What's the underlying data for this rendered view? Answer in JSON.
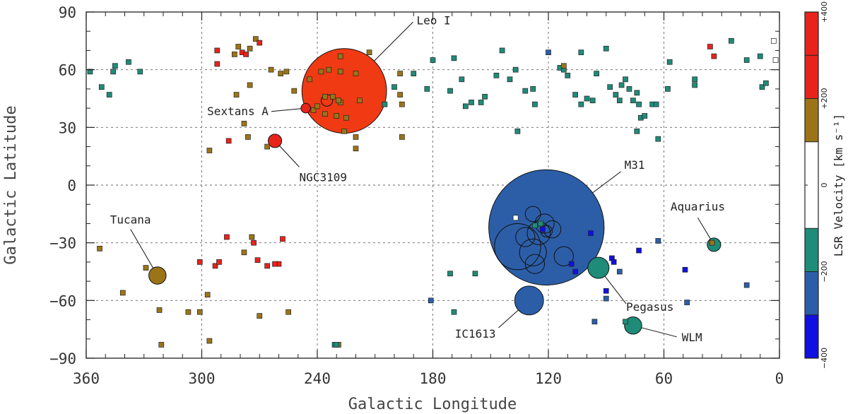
{
  "chart_data": {
    "type": "scatter",
    "xlabel": "Galactic Longitude",
    "ylabel": "Galactic Latitude",
    "xlim": [
      360,
      0
    ],
    "ylim": [
      -90,
      90
    ],
    "x_ticks": [
      360,
      300,
      240,
      180,
      120,
      60,
      0
    ],
    "y_ticks": [
      90,
      60,
      30,
      0,
      -30,
      -60,
      -90
    ],
    "grid": true,
    "colorbar": {
      "title": "LSR Velocity [km s⁻¹]",
      "tick_labels": [
        "+400",
        "+200",
        "0",
        "−200",
        "−400"
      ],
      "tick_values": [
        400,
        200,
        0,
        -200,
        -400
      ],
      "bands": [
        {
          "from": 300,
          "to": 400,
          "color": "#e8231c"
        },
        {
          "from": 200,
          "to": 300,
          "color": "#e8231c"
        },
        {
          "from": 100,
          "to": 200,
          "color": "#9c7418"
        },
        {
          "from": -100,
          "to": 100,
          "color": "#ffffff"
        },
        {
          "from": -200,
          "to": -100,
          "color": "#1e8c78"
        },
        {
          "from": -300,
          "to": -200,
          "color": "#2c5ea8"
        },
        {
          "from": -400,
          "to": -300,
          "color": "#1010e0"
        }
      ]
    },
    "galaxies": [
      {
        "name": "Leo I",
        "l": 226,
        "b": 49,
        "r_deg": 22,
        "color": "#f03a14",
        "label": "Leo I"
      },
      {
        "name": "Sextans A",
        "l": 246,
        "b": 40,
        "r_deg": 2.5,
        "color": "#e8231c",
        "label": "Sextans A"
      },
      {
        "name": "NGC3109",
        "l": 262,
        "b": 23,
        "r_deg": 3.5,
        "color": "#e8231c",
        "label": "NGC3109"
      },
      {
        "name": "M31",
        "l": 121,
        "b": -22,
        "r_deg": 30,
        "color": "#2c5ea8",
        "label": "M31"
      },
      {
        "name": "Aquarius",
        "l": 34,
        "b": -31,
        "r_deg": 3.5,
        "color": "#1e8c78",
        "label": "Aquarius"
      },
      {
        "name": "Tucana",
        "l": 323,
        "b": -47,
        "r_deg": 4.5,
        "color": "#9c7418",
        "label": "Tucana"
      },
      {
        "name": "Pegasus",
        "l": 94,
        "b": -43,
        "r_deg": 5.5,
        "color": "#1e8c78",
        "label": "Pegasus"
      },
      {
        "name": "IC1613",
        "l": 130,
        "b": -60,
        "r_deg": 7.5,
        "color": "#2c5ea8",
        "label": "IC1613"
      },
      {
        "name": "WLM",
        "l": 76,
        "b": -73,
        "r_deg": 4.5,
        "color": "#1e8c78",
        "label": "WLM"
      }
    ],
    "m31_satellites": [
      {
        "l": 128,
        "b": -15,
        "r_deg": 4
      },
      {
        "l": 122,
        "b": -20,
        "r_deg": 5
      },
      {
        "l": 125,
        "b": -25,
        "r_deg": 6
      },
      {
        "l": 118,
        "b": -23,
        "r_deg": 4.5
      },
      {
        "l": 132,
        "b": -27,
        "r_deg": 5
      },
      {
        "l": 136,
        "b": -32,
        "r_deg": 12
      },
      {
        "l": 128,
        "b": -35,
        "r_deg": 7
      },
      {
        "l": 112,
        "b": -37,
        "r_deg": 5
      },
      {
        "l": 127,
        "b": -41,
        "r_deg": 5
      },
      {
        "l": 121,
        "b": -24,
        "r_deg": 3
      }
    ],
    "hvc_points": [
      {
        "l": 358,
        "b": 59,
        "v": -170
      },
      {
        "l": 352,
        "b": 51,
        "v": -170
      },
      {
        "l": 348,
        "b": 47,
        "v": -170
      },
      {
        "l": 346,
        "b": 59,
        "v": -170
      },
      {
        "l": 345,
        "b": 62,
        "v": -170
      },
      {
        "l": 338,
        "b": 64,
        "v": -170
      },
      {
        "l": 332,
        "b": 59,
        "v": -170
      },
      {
        "l": 292,
        "b": 70,
        "v": 320
      },
      {
        "l": 292,
        "b": 63,
        "v": 320
      },
      {
        "l": 281,
        "b": 72,
        "v": 150
      },
      {
        "l": 279,
        "b": 69,
        "v": 320
      },
      {
        "l": 277,
        "b": 68,
        "v": 320
      },
      {
        "l": 275,
        "b": 71,
        "v": 150
      },
      {
        "l": 272,
        "b": 76,
        "v": 150
      },
      {
        "l": 270,
        "b": 74,
        "v": 320
      },
      {
        "l": 283,
        "b": 68,
        "v": 150
      },
      {
        "l": 264,
        "b": 60,
        "v": 150
      },
      {
        "l": 259,
        "b": 58,
        "v": 150
      },
      {
        "l": 256,
        "b": 59,
        "v": 150
      },
      {
        "l": 252,
        "b": 49,
        "v": 150
      },
      {
        "l": 244,
        "b": 55,
        "v": 150
      },
      {
        "l": 238,
        "b": 59,
        "v": 150
      },
      {
        "l": 234,
        "b": 60,
        "v": 150
      },
      {
        "l": 228,
        "b": 59,
        "v": 150
      },
      {
        "l": 228,
        "b": 67,
        "v": 150
      },
      {
        "l": 220,
        "b": 58,
        "v": 150
      },
      {
        "l": 213,
        "b": 69,
        "v": 150
      },
      {
        "l": 282,
        "b": 47,
        "v": 150
      },
      {
        "l": 275,
        "b": 52,
        "v": 150
      },
      {
        "l": 242,
        "b": 39,
        "v": 150
      },
      {
        "l": 236,
        "b": 46,
        "v": 150
      },
      {
        "l": 232,
        "b": 46,
        "v": 150
      },
      {
        "l": 228,
        "b": 43,
        "v": 150
      },
      {
        "l": 236,
        "b": 37,
        "v": 150
      },
      {
        "l": 230,
        "b": 36,
        "v": 150
      },
      {
        "l": 225,
        "b": 35,
        "v": 150
      },
      {
        "l": 218,
        "b": 44,
        "v": 150
      },
      {
        "l": 226,
        "b": 28,
        "v": 150
      },
      {
        "l": 220,
        "b": 25,
        "v": 150
      },
      {
        "l": 220,
        "b": 19,
        "v": 150
      },
      {
        "l": 197,
        "b": 58,
        "v": 150
      },
      {
        "l": 197,
        "b": 47,
        "v": 150
      },
      {
        "l": 196,
        "b": 42,
        "v": 150
      },
      {
        "l": 196,
        "b": 25,
        "v": 150
      },
      {
        "l": 278,
        "b": 32,
        "v": 150
      },
      {
        "l": 276,
        "b": 25,
        "v": 150
      },
      {
        "l": 286,
        "b": 23,
        "v": 320
      },
      {
        "l": 296,
        "b": 18,
        "v": 150
      },
      {
        "l": 266,
        "b": 20,
        "v": 150
      },
      {
        "l": 240,
        "b": 41,
        "v": 150
      },
      {
        "l": 229,
        "b": 44,
        "v": 150
      },
      {
        "l": 205,
        "b": 42,
        "v": -170
      },
      {
        "l": 200,
        "b": 51,
        "v": -170
      },
      {
        "l": 190,
        "b": 58,
        "v": -170
      },
      {
        "l": 183,
        "b": 50,
        "v": -170
      },
      {
        "l": 180,
        "b": 65,
        "v": -170
      },
      {
        "l": 171,
        "b": 49,
        "v": -170
      },
      {
        "l": 169,
        "b": 66,
        "v": -170
      },
      {
        "l": 165,
        "b": 55,
        "v": -170
      },
      {
        "l": 163,
        "b": 41,
        "v": -170
      },
      {
        "l": 160,
        "b": 43,
        "v": -170
      },
      {
        "l": 155,
        "b": 43,
        "v": -170
      },
      {
        "l": 153,
        "b": 46,
        "v": -170
      },
      {
        "l": 147,
        "b": 57,
        "v": -170
      },
      {
        "l": 144,
        "b": 70,
        "v": -170
      },
      {
        "l": 140,
        "b": 55,
        "v": -170
      },
      {
        "l": 137,
        "b": 60,
        "v": -170
      },
      {
        "l": 132,
        "b": 49,
        "v": -170
      },
      {
        "l": 128,
        "b": 50,
        "v": -170
      },
      {
        "l": 127,
        "b": 42,
        "v": -170
      },
      {
        "l": 136,
        "b": 28,
        "v": -170
      },
      {
        "l": 120,
        "b": 69,
        "v": -250
      },
      {
        "l": 114,
        "b": 61,
        "v": -170
      },
      {
        "l": 112,
        "b": 60,
        "v": -170
      },
      {
        "l": 110,
        "b": 57,
        "v": -170
      },
      {
        "l": 106,
        "b": 47,
        "v": -170
      },
      {
        "l": 103,
        "b": 42,
        "v": -170
      },
      {
        "l": 100,
        "b": 45,
        "v": -170
      },
      {
        "l": 97,
        "b": 44,
        "v": -170
      },
      {
        "l": 95,
        "b": 58,
        "v": -170
      },
      {
        "l": 90,
        "b": 71,
        "v": -170
      },
      {
        "l": 88,
        "b": 51,
        "v": -170
      },
      {
        "l": 85,
        "b": 47,
        "v": -170
      },
      {
        "l": 83,
        "b": 44,
        "v": -170
      },
      {
        "l": 82,
        "b": 52,
        "v": -170
      },
      {
        "l": 80,
        "b": 55,
        "v": -170
      },
      {
        "l": 78,
        "b": 50,
        "v": -170
      },
      {
        "l": 76,
        "b": 44,
        "v": -170
      },
      {
        "l": 74,
        "b": 48,
        "v": -170
      },
      {
        "l": 73,
        "b": 42,
        "v": -170
      },
      {
        "l": 72,
        "b": 35,
        "v": -170
      },
      {
        "l": 70,
        "b": 36,
        "v": -170
      },
      {
        "l": 66,
        "b": 42,
        "v": -170
      },
      {
        "l": 64,
        "b": 42,
        "v": -170
      },
      {
        "l": 63,
        "b": 24,
        "v": -170
      },
      {
        "l": 74,
        "b": 28,
        "v": -170
      },
      {
        "l": 112,
        "b": 62,
        "v": 150
      },
      {
        "l": 103,
        "b": 69,
        "v": -170
      },
      {
        "l": 57,
        "b": 64,
        "v": -170
      },
      {
        "l": 58,
        "b": 50,
        "v": -170
      },
      {
        "l": 44,
        "b": 55,
        "v": -170
      },
      {
        "l": 44,
        "b": 52,
        "v": -170
      },
      {
        "l": 36,
        "b": 72,
        "v": 320
      },
      {
        "l": 34,
        "b": 67,
        "v": 320
      },
      {
        "l": 25,
        "b": 75,
        "v": -170
      },
      {
        "l": 17,
        "b": 65,
        "v": -170
      },
      {
        "l": 10,
        "b": 67,
        "v": -170
      },
      {
        "l": 9,
        "b": 51,
        "v": -170
      },
      {
        "l": 7,
        "b": 53,
        "v": -170
      },
      {
        "l": 3,
        "b": 75,
        "v": 0
      },
      {
        "l": 2,
        "b": 65,
        "v": 0
      },
      {
        "l": 353,
        "b": -33,
        "v": 150
      },
      {
        "l": 329,
        "b": -43,
        "v": 150
      },
      {
        "l": 341,
        "b": -56,
        "v": 150
      },
      {
        "l": 322,
        "b": -65,
        "v": 150
      },
      {
        "l": 321,
        "b": -83,
        "v": 150
      },
      {
        "l": 307,
        "b": -66,
        "v": 150
      },
      {
        "l": 301,
        "b": -40,
        "v": 320
      },
      {
        "l": 301,
        "b": -66,
        "v": 150
      },
      {
        "l": 297,
        "b": -57,
        "v": 150
      },
      {
        "l": 296,
        "b": -81,
        "v": 150
      },
      {
        "l": 293,
        "b": -42,
        "v": 320
      },
      {
        "l": 291,
        "b": -40,
        "v": 320
      },
      {
        "l": 287,
        "b": -27,
        "v": 320
      },
      {
        "l": 278,
        "b": -35,
        "v": 150
      },
      {
        "l": 274,
        "b": -27,
        "v": 150
      },
      {
        "l": 273,
        "b": -30,
        "v": 320
      },
      {
        "l": 271,
        "b": -39,
        "v": 320
      },
      {
        "l": 266,
        "b": -42,
        "v": 320
      },
      {
        "l": 260,
        "b": -41,
        "v": 320
      },
      {
        "l": 262,
        "b": -41,
        "v": 320
      },
      {
        "l": 258,
        "b": -28,
        "v": 320
      },
      {
        "l": 255,
        "b": -66,
        "v": 150
      },
      {
        "l": 270,
        "b": -68,
        "v": 150
      },
      {
        "l": 231,
        "b": -83,
        "v": -170
      },
      {
        "l": 229,
        "b": -83,
        "v": 150
      },
      {
        "l": 230,
        "b": -83,
        "v": -170
      },
      {
        "l": 181,
        "b": -60,
        "v": -250
      },
      {
        "l": 171,
        "b": -46,
        "v": -170
      },
      {
        "l": 169,
        "b": -66,
        "v": -170
      },
      {
        "l": 158,
        "b": -46,
        "v": -170
      },
      {
        "l": 137,
        "b": -17,
        "v": 0
      },
      {
        "l": 127,
        "b": -21,
        "v": -170
      },
      {
        "l": 124,
        "b": -20,
        "v": -170
      },
      {
        "l": 123,
        "b": -23,
        "v": -400
      },
      {
        "l": 98,
        "b": -25,
        "v": -400
      },
      {
        "l": 108,
        "b": -41,
        "v": -400
      },
      {
        "l": 106,
        "b": -45,
        "v": -400
      },
      {
        "l": 87,
        "b": -38,
        "v": -400
      },
      {
        "l": 86,
        "b": -40,
        "v": -400
      },
      {
        "l": 83,
        "b": -45,
        "v": -250
      },
      {
        "l": 90,
        "b": -55,
        "v": -400
      },
      {
        "l": 90,
        "b": -59,
        "v": -250
      },
      {
        "l": 96,
        "b": -71,
        "v": -250
      },
      {
        "l": 80,
        "b": -71,
        "v": -170
      },
      {
        "l": 73,
        "b": -34,
        "v": -400
      },
      {
        "l": 63,
        "b": -29,
        "v": -250
      },
      {
        "l": 49,
        "b": -44,
        "v": -400
      },
      {
        "l": 48,
        "b": -61,
        "v": -250
      },
      {
        "l": 35,
        "b": -30,
        "v": 150
      },
      {
        "l": 17,
        "b": -52,
        "v": -250
      }
    ],
    "annotations": [
      {
        "text": "Leo I",
        "target": "Leo I"
      },
      {
        "text": "Sextans A",
        "target": "Sextans A"
      },
      {
        "text": "NGC3109",
        "target": "NGC3109"
      },
      {
        "text": "M31",
        "target": "M31"
      },
      {
        "text": "Aquarius",
        "target": "Aquarius"
      },
      {
        "text": "Tucana",
        "target": "Tucana"
      },
      {
        "text": "Pegasus",
        "target": "Pegasus"
      },
      {
        "text": "IC1613",
        "target": "IC1613"
      },
      {
        "text": "WLM",
        "target": "WLM"
      }
    ]
  }
}
